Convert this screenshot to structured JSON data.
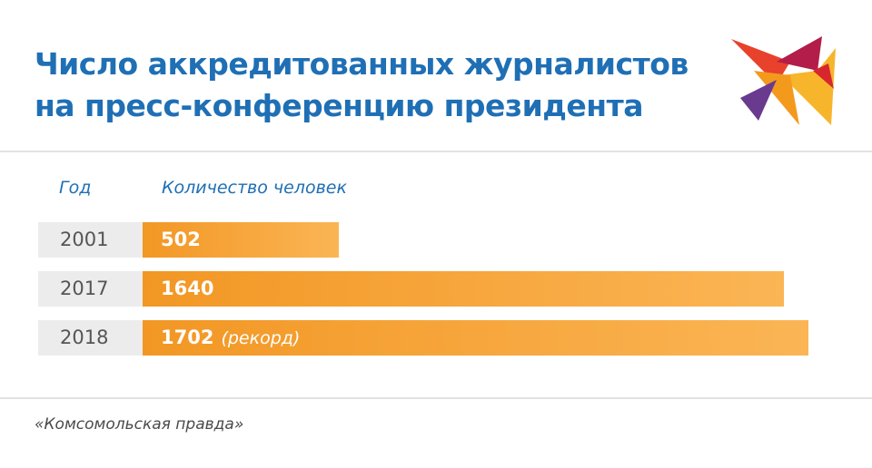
{
  "header": {
    "title_line1": "Число аккредитованных журналистов",
    "title_line2": "на пресс-конференцию президента"
  },
  "logo": {
    "icon": "bird-logo-icon",
    "colors": [
      "#e8412c",
      "#f7b52b",
      "#6a3a8f",
      "#b31d4a"
    ]
  },
  "chart_data": {
    "type": "bar",
    "orientation": "horizontal",
    "title": "Число аккредитованных журналистов на пресс-конференцию президента",
    "column_headers": {
      "category": "Год",
      "value": "Количество человек"
    },
    "categories": [
      "2001",
      "2017",
      "2018"
    ],
    "values": [
      502,
      1640,
      1702
    ],
    "value_labels": [
      "502",
      "1640",
      "1702"
    ],
    "annotations": [
      "",
      "",
      "(рекорд)"
    ],
    "xlim": [
      0,
      1702
    ],
    "bar_color": "#f29724",
    "grid": false
  },
  "footer": {
    "source": "«Комсомольская правда»"
  }
}
